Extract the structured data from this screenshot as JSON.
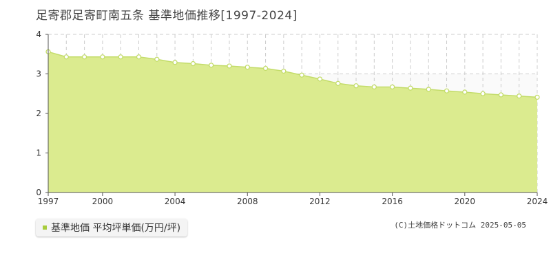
{
  "title": "足寄郡足寄町南五条 基準地価推移[1997-2024]",
  "legend": {
    "label": "基準地価 平均坪単価(万円/坪)"
  },
  "copyright": "(C)土地価格ドットコム 2025-05-05",
  "colors": {
    "fill": "#dbeb8f",
    "line": "#c3dc6a",
    "marker_fill": "#ffffff",
    "grid": "#cccccc",
    "swatch": "#a8cc3c"
  },
  "chart_data": {
    "type": "area",
    "title": "足寄郡足寄町南五条 基準地価推移[1997-2024]",
    "xlabel": "",
    "ylabel": "",
    "x": [
      1997,
      1998,
      1999,
      2000,
      2001,
      2002,
      2003,
      2004,
      2005,
      2006,
      2007,
      2008,
      2009,
      2010,
      2011,
      2012,
      2013,
      2014,
      2015,
      2016,
      2017,
      2018,
      2019,
      2020,
      2021,
      2022,
      2023,
      2024
    ],
    "series": [
      {
        "name": "基準地価 平均坪単価(万円/坪)",
        "values": [
          3.56,
          3.43,
          3.43,
          3.43,
          3.43,
          3.43,
          3.37,
          3.29,
          3.26,
          3.22,
          3.2,
          3.17,
          3.14,
          3.07,
          2.97,
          2.87,
          2.76,
          2.7,
          2.67,
          2.67,
          2.64,
          2.61,
          2.57,
          2.54,
          2.5,
          2.47,
          2.44,
          2.41
        ]
      }
    ],
    "xlim": [
      1997,
      2024
    ],
    "ylim": [
      0,
      4
    ],
    "x_ticks": [
      "1997",
      "2000",
      "2004",
      "2008",
      "2012",
      "2016",
      "2020",
      "2024"
    ],
    "y_ticks": [
      "0",
      "1",
      "2",
      "3",
      "4"
    ],
    "grid": true,
    "legend_position": "bottom-left"
  }
}
